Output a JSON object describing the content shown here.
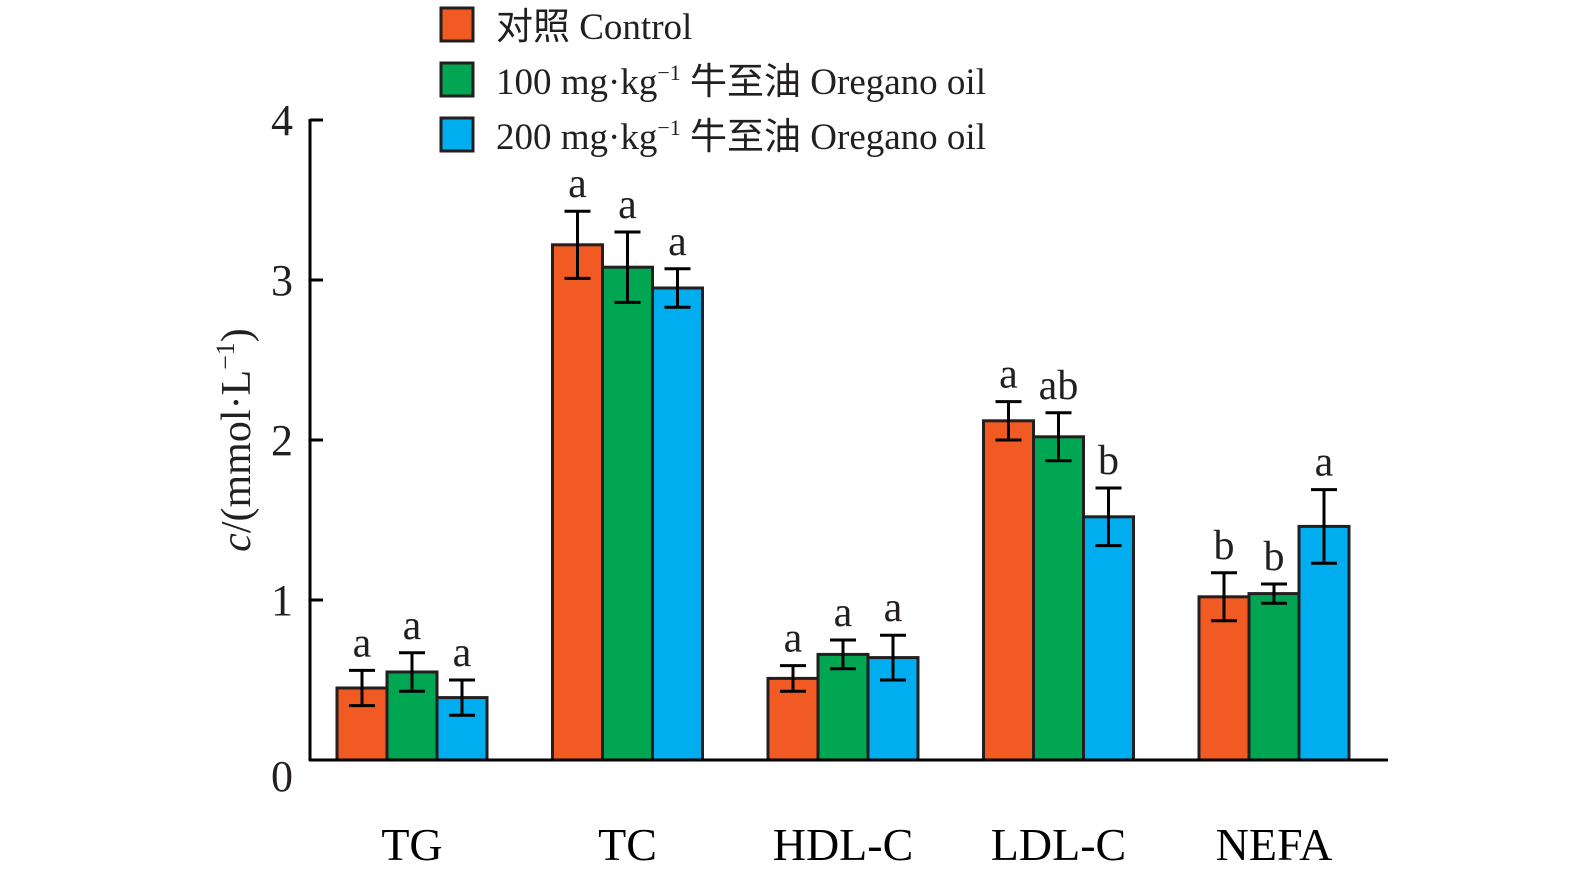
{
  "chart_data": {
    "type": "bar",
    "title": "",
    "xlabel": "",
    "ylabel": {
      "italic": "c",
      "rest": "/(mmol·L",
      "sup": "−1",
      "close": ")"
    },
    "ylim": [
      0,
      4
    ],
    "yticks": [
      "0",
      "1",
      "2",
      "3",
      "4"
    ],
    "categories": [
      "TG",
      "TC",
      "HDL-C",
      "LDL-C",
      "NEFA"
    ],
    "legend_position": "top",
    "series": [
      {
        "name": "对照 Control",
        "label_parts": {
          "main": "对照 Control",
          "sup": "",
          "tail": ""
        },
        "color": "#F15A22",
        "values": [
          0.45,
          3.22,
          0.51,
          2.12,
          1.02
        ],
        "errors": [
          0.11,
          0.21,
          0.08,
          0.12,
          0.15
        ],
        "significance": [
          "a",
          "a",
          "a",
          "a",
          "b"
        ]
      },
      {
        "name": "100 mg·kg−1 牛至油 Oregano oil",
        "label_parts": {
          "main": "100 mg·kg",
          "sup": "−1",
          "tail": " 牛至油 Oregano oil"
        },
        "color": "#00A651",
        "values": [
          0.55,
          3.08,
          0.66,
          2.02,
          1.04
        ],
        "errors": [
          0.12,
          0.22,
          0.09,
          0.15,
          0.06
        ],
        "significance": [
          "a",
          "a",
          "a",
          "ab",
          "b"
        ]
      },
      {
        "name": "200 mg·kg−1 牛至油 Oregano oil",
        "label_parts": {
          "main": "200 mg·kg",
          "sup": "−1",
          "tail": " 牛至油 Oregano oil"
        },
        "color": "#00AEEF",
        "values": [
          0.39,
          2.95,
          0.64,
          1.52,
          1.46
        ],
        "errors": [
          0.11,
          0.12,
          0.14,
          0.18,
          0.23
        ],
        "significance": [
          "a",
          "a",
          "a",
          "b",
          "a"
        ]
      }
    ]
  }
}
